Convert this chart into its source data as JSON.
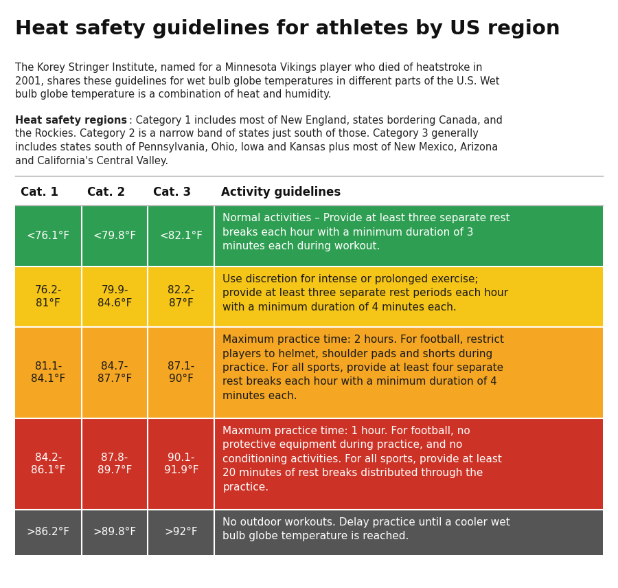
{
  "title": "Heat safety guidelines for athletes by US region",
  "subtitle_lines": [
    "The Korey Stringer Institute, named for a Minnesota Vikings player who died of heatstroke in",
    "2001, shares these guidelines for wet bulb globe temperatures in different parts of the U.S. Wet",
    "bulb globe temperature is a combination of heat and humidity."
  ],
  "region_bold": "Heat safety regions",
  "region_normal": ": Category 1 includes most of New England, states bordering Canada, and\nthe Rockies. Category 2 is a narrow band of states just south of those. Category 3 generally\nincludes states south of Pennsylvania, Ohio, Iowa and Kansas plus most of New Mexico, Arizona\nand California's Central Valley.",
  "headers": [
    "Cat. 1",
    "Cat. 2",
    "Cat. 3",
    "Activity guidelines"
  ],
  "rows": [
    {
      "cat1": "<76.1°F",
      "cat2": "<79.8°F",
      "cat3": "<82.1°F",
      "guideline": "Normal activities – Provide at least three separate rest\nbreaks each hour with a minimum duration of 3\nminutes each during workout.",
      "color": "#2e9e52",
      "text_color": "#ffffff"
    },
    {
      "cat1": "76.2-\n81°F",
      "cat2": "79.9-\n84.6°F",
      "cat3": "82.2-\n87°F",
      "guideline": "Use discretion for intense or prolonged exercise;\nprovide at least three separate rest periods each hour\nwith a minimum duration of 4 minutes each.",
      "color": "#f5c518",
      "text_color": "#1a1a1a"
    },
    {
      "cat1": "81.1-\n84.1°F",
      "cat2": "84.7-\n87.7°F",
      "cat3": "87.1-\n90°F",
      "guideline": "Maximum practice time: 2 hours. For football, restrict\nplayers to helmet, shoulder pads and shorts during\npractice. For all sports, provide at least four separate\nrest breaks each hour with a minimum duration of 4\nminutes each.",
      "color": "#f5a623",
      "text_color": "#1a1a1a"
    },
    {
      "cat1": "84.2-\n86.1°F",
      "cat2": "87.8-\n89.7°F",
      "cat3": "90.1-\n91.9°F",
      "guideline": "Maxmum practice time: 1 hour. For football, no\nprotective equipment during practice, and no\nconditioning activities. For all sports, provide at least\n20 minutes of rest breaks distributed through the\npractice.",
      "color": "#cc3326",
      "text_color": "#ffffff"
    },
    {
      "cat1": ">86.2°F",
      "cat2": ">89.8°F",
      "cat3": ">92°F",
      "guideline": "No outdoor workouts. Delay practice until a cooler wet\nbulb globe temperature is reached.",
      "color": "#555555",
      "text_color": "#ffffff"
    }
  ],
  "background_color": "#ffffff",
  "header_text_color": "#111111",
  "divider_color": "#aaaaaa",
  "title_fontsize": 21,
  "body_fontsize": 10.5,
  "header_fontsize": 12,
  "cell_fontsize": 11
}
